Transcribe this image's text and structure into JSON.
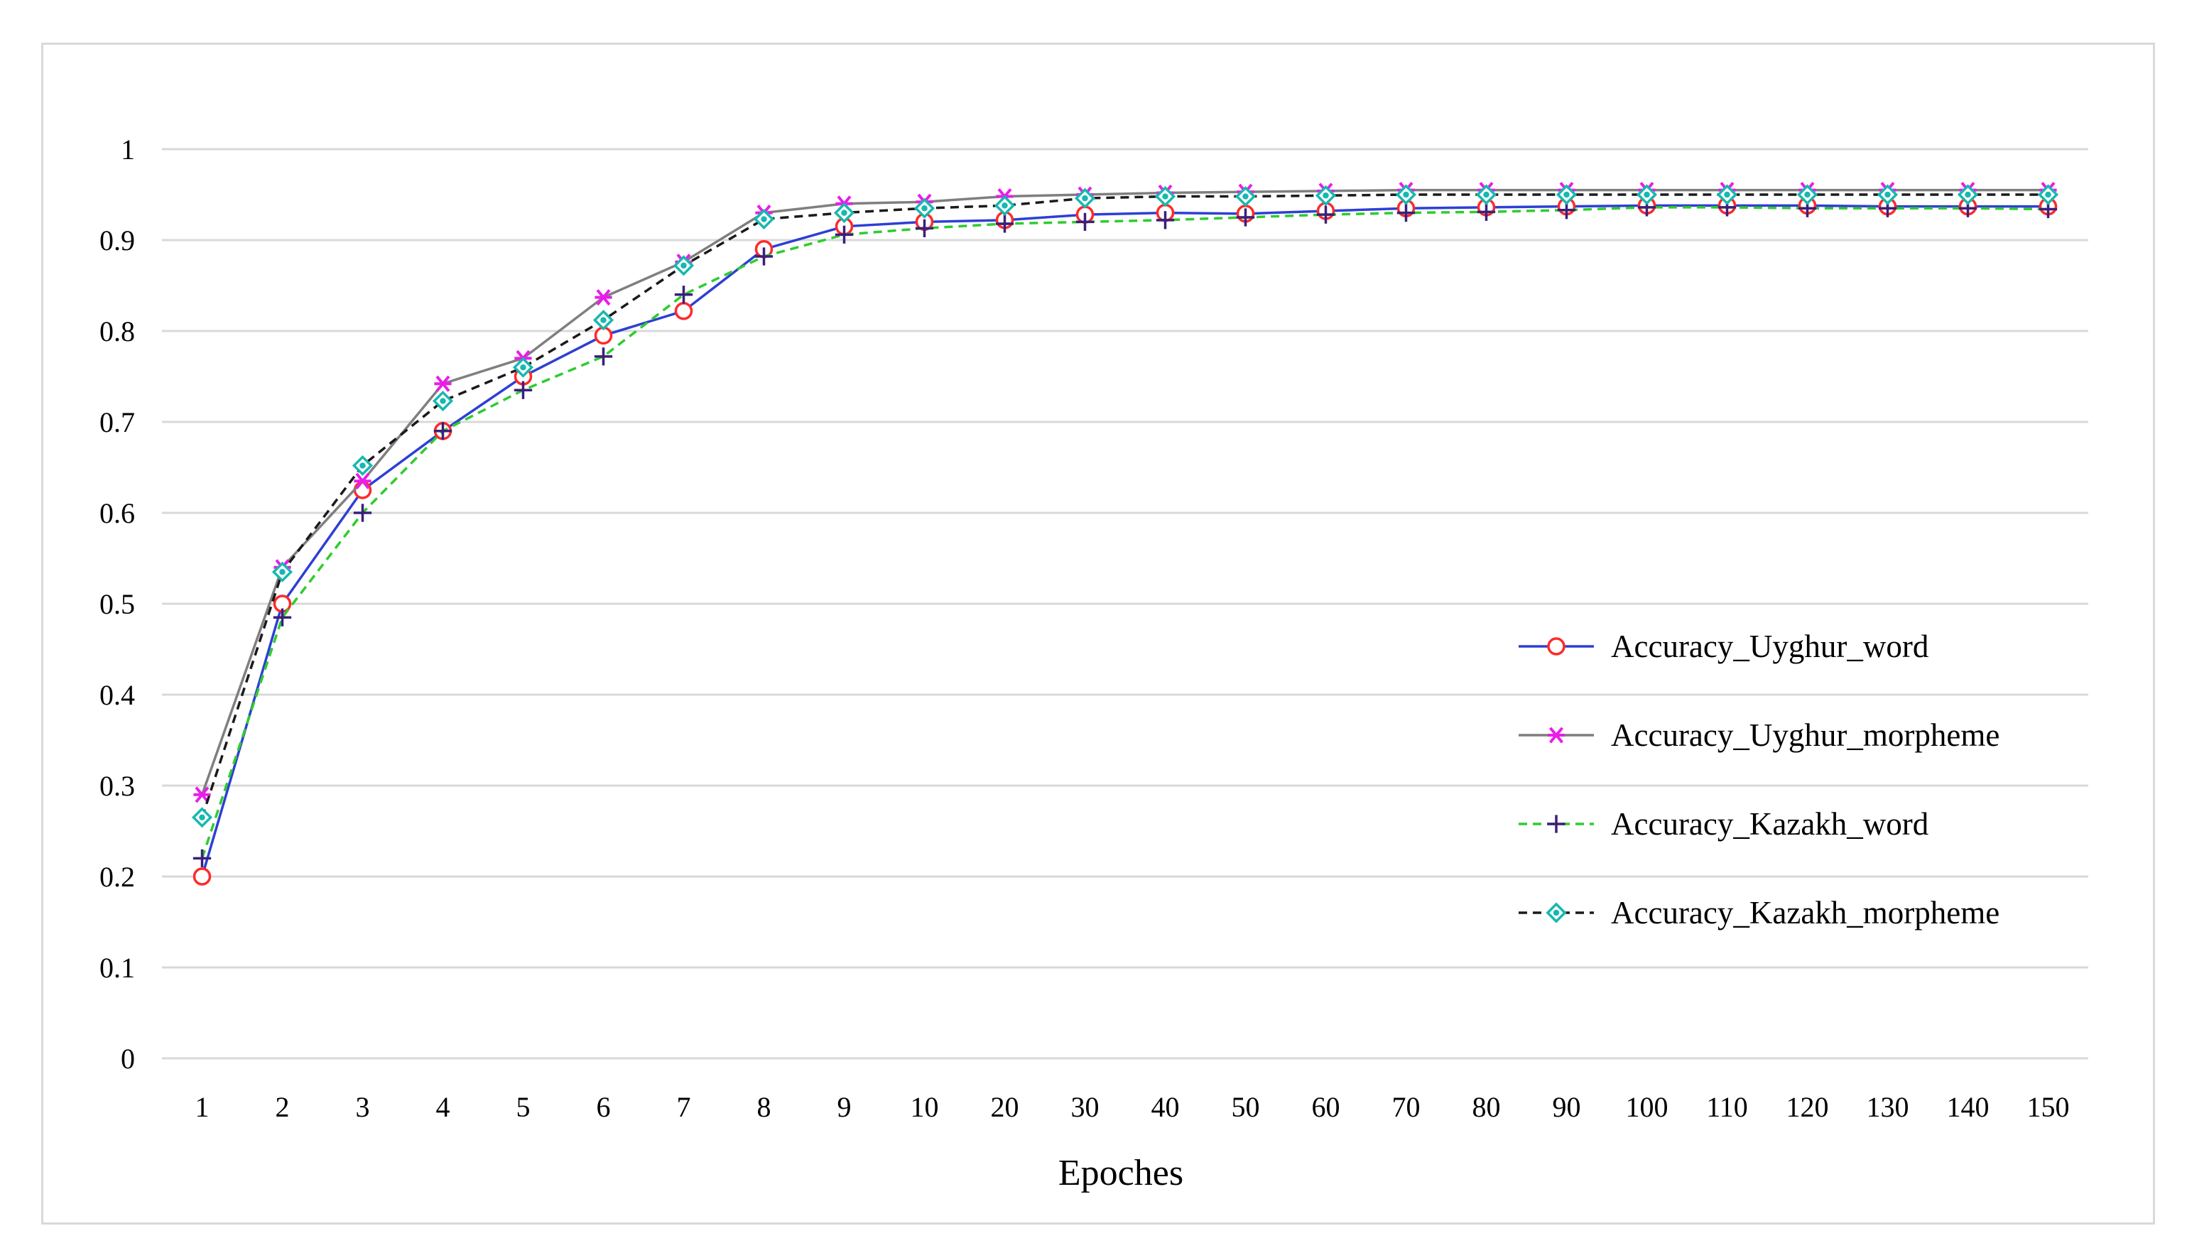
{
  "chart_data": {
    "type": "line",
    "title": "",
    "xlabel": "Epoches",
    "ylabel": "",
    "ylim": [
      0,
      1
    ],
    "yticks": [
      "0",
      "0.1",
      "0.2",
      "0.3",
      "0.4",
      "0.5",
      "0.6",
      "0.7",
      "0.8",
      "0.9",
      "1"
    ],
    "grid": true,
    "legend_position": "right",
    "categories": [
      "1",
      "2",
      "3",
      "4",
      "5",
      "6",
      "7",
      "8",
      "9",
      "10",
      "20",
      "30",
      "40",
      "50",
      "60",
      "70",
      "80",
      "90",
      "100",
      "110",
      "120",
      "130",
      "140",
      "150"
    ],
    "series": [
      {
        "name": "Accuracy_Uyghur_word",
        "color": "#2e3fd4",
        "marker_color": "#ff2a2a",
        "marker": "circle",
        "dash": "solid",
        "values": [
          0.2,
          0.5,
          0.625,
          0.69,
          0.75,
          0.795,
          0.822,
          0.89,
          0.915,
          0.92,
          0.922,
          0.928,
          0.93,
          0.929,
          0.932,
          0.935,
          0.936,
          0.937,
          0.938,
          0.938,
          0.938,
          0.937,
          0.937,
          0.937
        ]
      },
      {
        "name": "Accuracy_Uyghur_morpheme",
        "color": "#7f7f7f",
        "marker_color": "#e81ee8",
        "marker": "asterisk",
        "dash": "solid",
        "values": [
          0.29,
          0.54,
          0.635,
          0.742,
          0.77,
          0.837,
          0.876,
          0.93,
          0.94,
          0.942,
          0.948,
          0.95,
          0.952,
          0.953,
          0.954,
          0.955,
          0.955,
          0.955,
          0.955,
          0.955,
          0.955,
          0.955,
          0.955,
          0.955
        ]
      },
      {
        "name": "Accuracy_Kazakh_word",
        "color": "#2ecc2e",
        "marker_color": "#3b1f7a",
        "marker": "plus",
        "dash": "dashed",
        "values": [
          0.22,
          0.485,
          0.6,
          0.69,
          0.735,
          0.772,
          0.84,
          0.882,
          0.906,
          0.913,
          0.918,
          0.92,
          0.922,
          0.925,
          0.928,
          0.93,
          0.931,
          0.933,
          0.936,
          0.936,
          0.935,
          0.935,
          0.935,
          0.934
        ]
      },
      {
        "name": "Accuracy_Kazakh_morpheme",
        "color": "#1a1a1a",
        "marker_color": "#17b8b0",
        "marker": "diamond",
        "dash": "dashed",
        "values": [
          0.265,
          0.535,
          0.652,
          0.723,
          0.76,
          0.812,
          0.872,
          0.923,
          0.93,
          0.935,
          0.938,
          0.946,
          0.948,
          0.948,
          0.949,
          0.95,
          0.95,
          0.95,
          0.95,
          0.95,
          0.95,
          0.95,
          0.95,
          0.95
        ]
      }
    ]
  }
}
